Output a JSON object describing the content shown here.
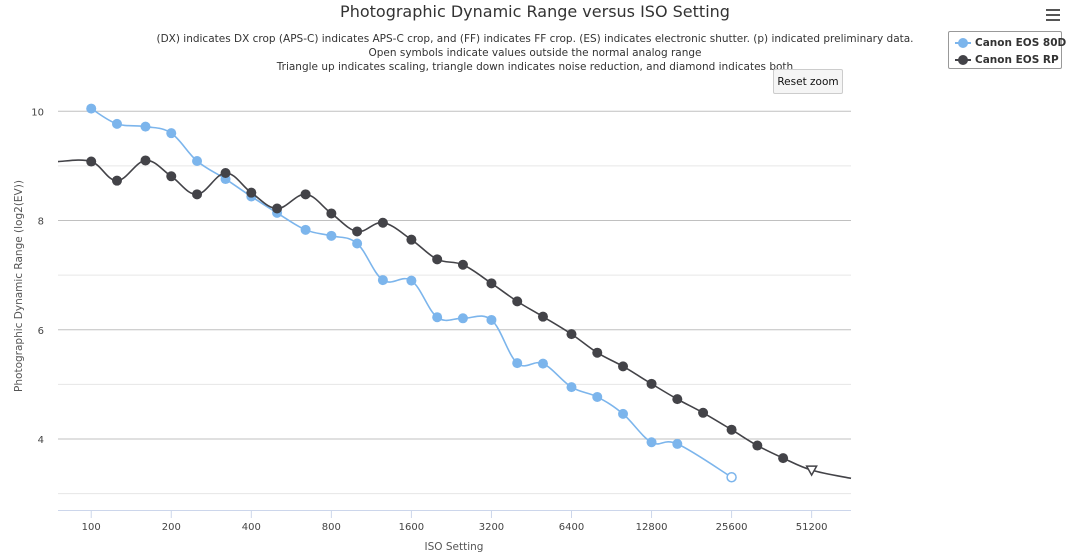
{
  "chart_data": {
    "type": "line",
    "title": "Photographic Dynamic Range versus ISO Setting",
    "subtitle": [
      "(DX) indicates DX crop (APS-C) indicates APS-C crop, and (FF) indicates FF crop. (ES) indicates electronic shutter. (p) indicated preliminary data.",
      "Open symbols indicate values outside the normal analog range",
      "Triangle up indicates scaling, triangle down indicates noise reduction, and diamond indicates both"
    ],
    "xlabel": "ISO Setting",
    "ylabel": "Photographic Dynamic Range (log2(EV))",
    "x_scale": "log2",
    "x_ticks": [
      100,
      200,
      400,
      800,
      1600,
      3200,
      6400,
      12800,
      25600,
      51200
    ],
    "x_tick_labels": [
      "100",
      "200",
      "400",
      "800",
      "1600",
      "3200",
      "6400",
      "12800",
      "25600",
      "51200"
    ],
    "xlim": [
      75,
      72000
    ],
    "y_ticks": [
      4,
      6,
      8,
      10
    ],
    "ylim": [
      2.7,
      10.5
    ],
    "grid": true,
    "legend": "top-right, outside plot",
    "series": [
      {
        "name": "Canon EOS 80D",
        "color": "#7cb5ec",
        "points": [
          [
            100,
            10.05
          ],
          [
            125,
            9.77
          ],
          [
            160,
            9.72
          ],
          [
            200,
            9.6
          ],
          [
            250,
            9.09
          ],
          [
            320,
            8.76
          ],
          [
            400,
            8.44
          ],
          [
            500,
            8.14
          ],
          [
            640,
            7.83
          ],
          [
            800,
            7.72
          ],
          [
            1000,
            7.58
          ],
          [
            1250,
            6.91
          ],
          [
            1600,
            6.9
          ],
          [
            2000,
            6.23
          ],
          [
            2500,
            6.21
          ],
          [
            3200,
            6.18
          ],
          [
            4000,
            5.39
          ],
          [
            5000,
            5.38
          ],
          [
            6400,
            4.95
          ],
          [
            8000,
            4.77
          ],
          [
            10000,
            4.46
          ],
          [
            12800,
            3.94
          ],
          [
            16000,
            3.91
          ],
          [
            25600,
            3.3
          ]
        ],
        "open_points": [
          [
            25600,
            3.3
          ]
        ]
      },
      {
        "name": "Canon EOS RP",
        "color": "#434348",
        "points": [
          [
            100,
            9.08
          ],
          [
            125,
            8.73
          ],
          [
            160,
            9.1
          ],
          [
            200,
            8.81
          ],
          [
            250,
            8.48
          ],
          [
            320,
            8.87
          ],
          [
            400,
            8.51
          ],
          [
            500,
            8.22
          ],
          [
            640,
            8.48
          ],
          [
            800,
            8.13
          ],
          [
            1000,
            7.8
          ],
          [
            1250,
            7.96
          ],
          [
            1600,
            7.65
          ],
          [
            2000,
            7.29
          ],
          [
            2500,
            7.19
          ],
          [
            3200,
            6.85
          ],
          [
            4000,
            6.52
          ],
          [
            5000,
            6.24
          ],
          [
            6400,
            5.92
          ],
          [
            8000,
            5.58
          ],
          [
            10000,
            5.33
          ],
          [
            12800,
            5.01
          ],
          [
            16000,
            4.73
          ],
          [
            20000,
            4.48
          ],
          [
            25600,
            4.17
          ],
          [
            32000,
            3.88
          ],
          [
            40000,
            3.65
          ],
          [
            51200,
            3.43
          ]
        ],
        "line_extends_to": [
          [
            75,
            9.08
          ],
          [
            72000,
            3.28
          ]
        ],
        "triangle_down_points": [
          [
            51200,
            3.43
          ]
        ]
      }
    ]
  },
  "ui": {
    "reset_zoom_label": "Reset zoom",
    "menu_icon": "hamburger-menu-icon"
  }
}
